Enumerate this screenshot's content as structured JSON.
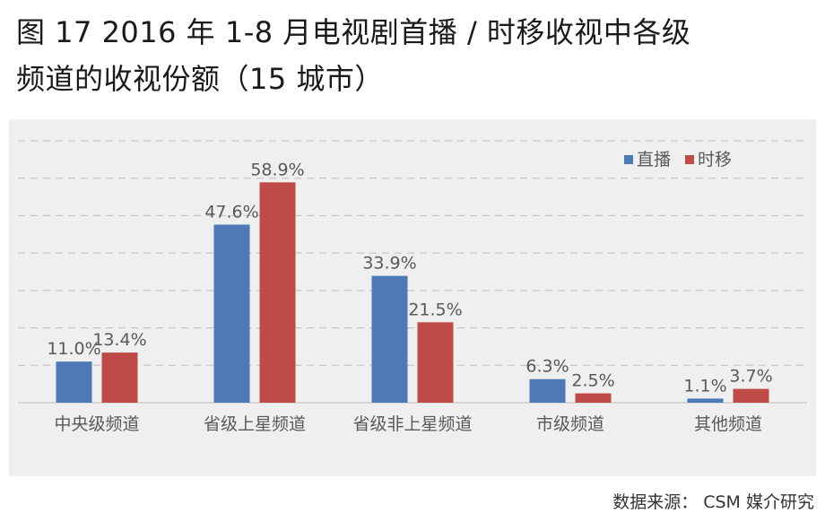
{
  "title": {
    "line1": "图 17 2016 年 1-8 月电视剧首播 / 时移收视中各级",
    "line2": "频道的收视份额（15 城市）"
  },
  "source": "数据来源： CSM 媒介研究",
  "colors": {
    "direct": "#4e79b7",
    "timeshift": "#be4b48",
    "grid": "#bdbdbd",
    "axis": "#c8c8c8",
    "label": "#595959"
  },
  "chart_data": {
    "type": "bar",
    "categories": [
      "中央级频道",
      "省级上星频道",
      "省级非上星频道",
      "市级频道",
      "其他频道"
    ],
    "series": [
      {
        "name": "直播",
        "values": [
          11.0,
          47.6,
          33.9,
          6.3,
          1.1
        ],
        "labels": [
          "11.0%",
          "47.6%",
          "33.9%",
          "6.3%",
          "1.1%"
        ]
      },
      {
        "name": "时移",
        "values": [
          13.4,
          58.9,
          21.5,
          2.5,
          3.7
        ],
        "labels": [
          "13.4%",
          "58.9%",
          "21.5%",
          "2.5%",
          "3.7%"
        ]
      }
    ],
    "ylim": [
      0,
      70
    ],
    "grid": true,
    "legend": "top-right"
  }
}
